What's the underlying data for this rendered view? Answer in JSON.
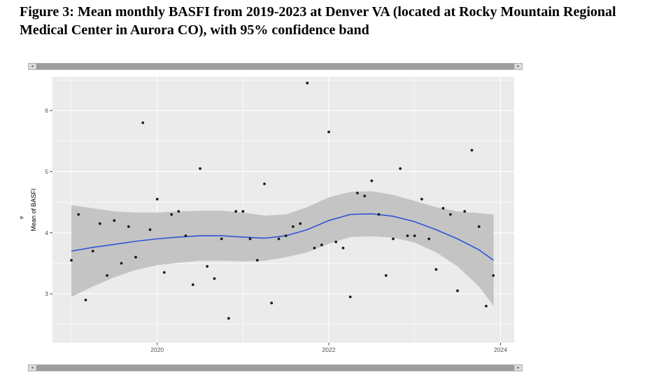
{
  "figure": {
    "caption": "Figure 3: Mean monthly BASFI from 2019-2023 at Denver VA (located at Rocky Mountain Regional Medical Center in Aurora CO), with 95% confidence band"
  },
  "ui": {
    "icons": {
      "scroll_left": "◄",
      "scroll_right": "►",
      "expand_arrow": "▸"
    }
  },
  "chart_data": {
    "type": "scatter",
    "title": "",
    "xlabel": "",
    "ylabel": "Mean of BASFI",
    "xlim": [
      2018.78,
      2024.16
    ],
    "ylim": [
      2.2,
      6.55
    ],
    "x_ticks": [
      2020,
      2022,
      2024
    ],
    "x_minor_ticks": [
      2019,
      2021,
      2023
    ],
    "y_ticks": [
      3,
      4,
      5,
      6
    ],
    "y_minor_ticks": [
      2.5,
      3.5,
      4.5,
      5.5,
      6.5
    ],
    "grid": true,
    "legend": "none",
    "colors": {
      "panel_bg": "#ebebeb",
      "grid": "#ffffff",
      "band": "#c4c4c4",
      "line": "#3253d6",
      "point": "#1c1c1c",
      "tick_label": "#4d4d4d",
      "axis_tick": "#333333"
    },
    "points": {
      "x": [
        2019.0,
        2019.083,
        2019.167,
        2019.25,
        2019.333,
        2019.417,
        2019.5,
        2019.583,
        2019.667,
        2019.75,
        2019.833,
        2019.917,
        2020.0,
        2020.083,
        2020.167,
        2020.25,
        2020.333,
        2020.417,
        2020.5,
        2020.583,
        2020.667,
        2020.75,
        2020.833,
        2020.917,
        2021.0,
        2021.083,
        2021.167,
        2021.25,
        2021.333,
        2021.417,
        2021.5,
        2021.583,
        2021.667,
        2021.75,
        2021.833,
        2021.917,
        2022.0,
        2022.083,
        2022.167,
        2022.25,
        2022.333,
        2022.417,
        2022.5,
        2022.583,
        2022.667,
        2022.75,
        2022.833,
        2022.917,
        2023.0,
        2023.083,
        2023.167,
        2023.25,
        2023.333,
        2023.417,
        2023.5,
        2023.583,
        2023.667,
        2023.75,
        2023.833,
        2023.917
      ],
      "y": [
        3.55,
        4.3,
        2.9,
        3.7,
        4.15,
        3.3,
        4.2,
        3.5,
        4.1,
        3.6,
        5.8,
        4.05,
        4.55,
        3.35,
        4.3,
        4.35,
        3.95,
        3.15,
        5.05,
        3.45,
        3.25,
        3.9,
        2.6,
        4.35,
        4.35,
        3.9,
        3.55,
        4.8,
        2.85,
        3.9,
        3.95,
        4.1,
        4.15,
        6.45,
        3.75,
        3.8,
        5.65,
        3.85,
        3.75,
        2.95,
        4.65,
        4.6,
        4.85,
        4.3,
        3.3,
        3.9,
        5.05,
        3.95,
        3.95,
        4.55,
        3.9,
        3.4,
        4.4,
        4.3,
        3.05,
        4.35,
        5.35,
        4.1,
        2.8,
        3.3
      ]
    },
    "smooth_line": {
      "x": [
        2019.0,
        2019.25,
        2019.5,
        2019.75,
        2020.0,
        2020.25,
        2020.5,
        2020.75,
        2021.0,
        2021.25,
        2021.5,
        2021.75,
        2022.0,
        2022.25,
        2022.5,
        2022.75,
        2023.0,
        2023.25,
        2023.5,
        2023.75,
        2023.92
      ],
      "y": [
        3.7,
        3.76,
        3.81,
        3.86,
        3.9,
        3.93,
        3.95,
        3.95,
        3.93,
        3.91,
        3.95,
        4.05,
        4.2,
        4.3,
        4.31,
        4.27,
        4.18,
        4.05,
        3.9,
        3.72,
        3.55
      ]
    },
    "confidence_band": {
      "level": "95%",
      "x": [
        2019.0,
        2019.25,
        2019.5,
        2019.75,
        2020.0,
        2020.25,
        2020.5,
        2020.75,
        2021.0,
        2021.25,
        2021.5,
        2021.75,
        2022.0,
        2022.25,
        2022.5,
        2022.75,
        2023.0,
        2023.25,
        2023.5,
        2023.75,
        2023.92
      ],
      "upper": [
        4.45,
        4.4,
        4.35,
        4.33,
        4.33,
        4.35,
        4.36,
        4.36,
        4.33,
        4.28,
        4.3,
        4.42,
        4.58,
        4.67,
        4.68,
        4.62,
        4.52,
        4.42,
        4.35,
        4.32,
        4.3
      ],
      "lower": [
        2.95,
        3.12,
        3.27,
        3.39,
        3.47,
        3.51,
        3.54,
        3.54,
        3.53,
        3.54,
        3.6,
        3.68,
        3.82,
        3.93,
        3.94,
        3.92,
        3.84,
        3.68,
        3.45,
        3.12,
        2.8
      ]
    }
  }
}
